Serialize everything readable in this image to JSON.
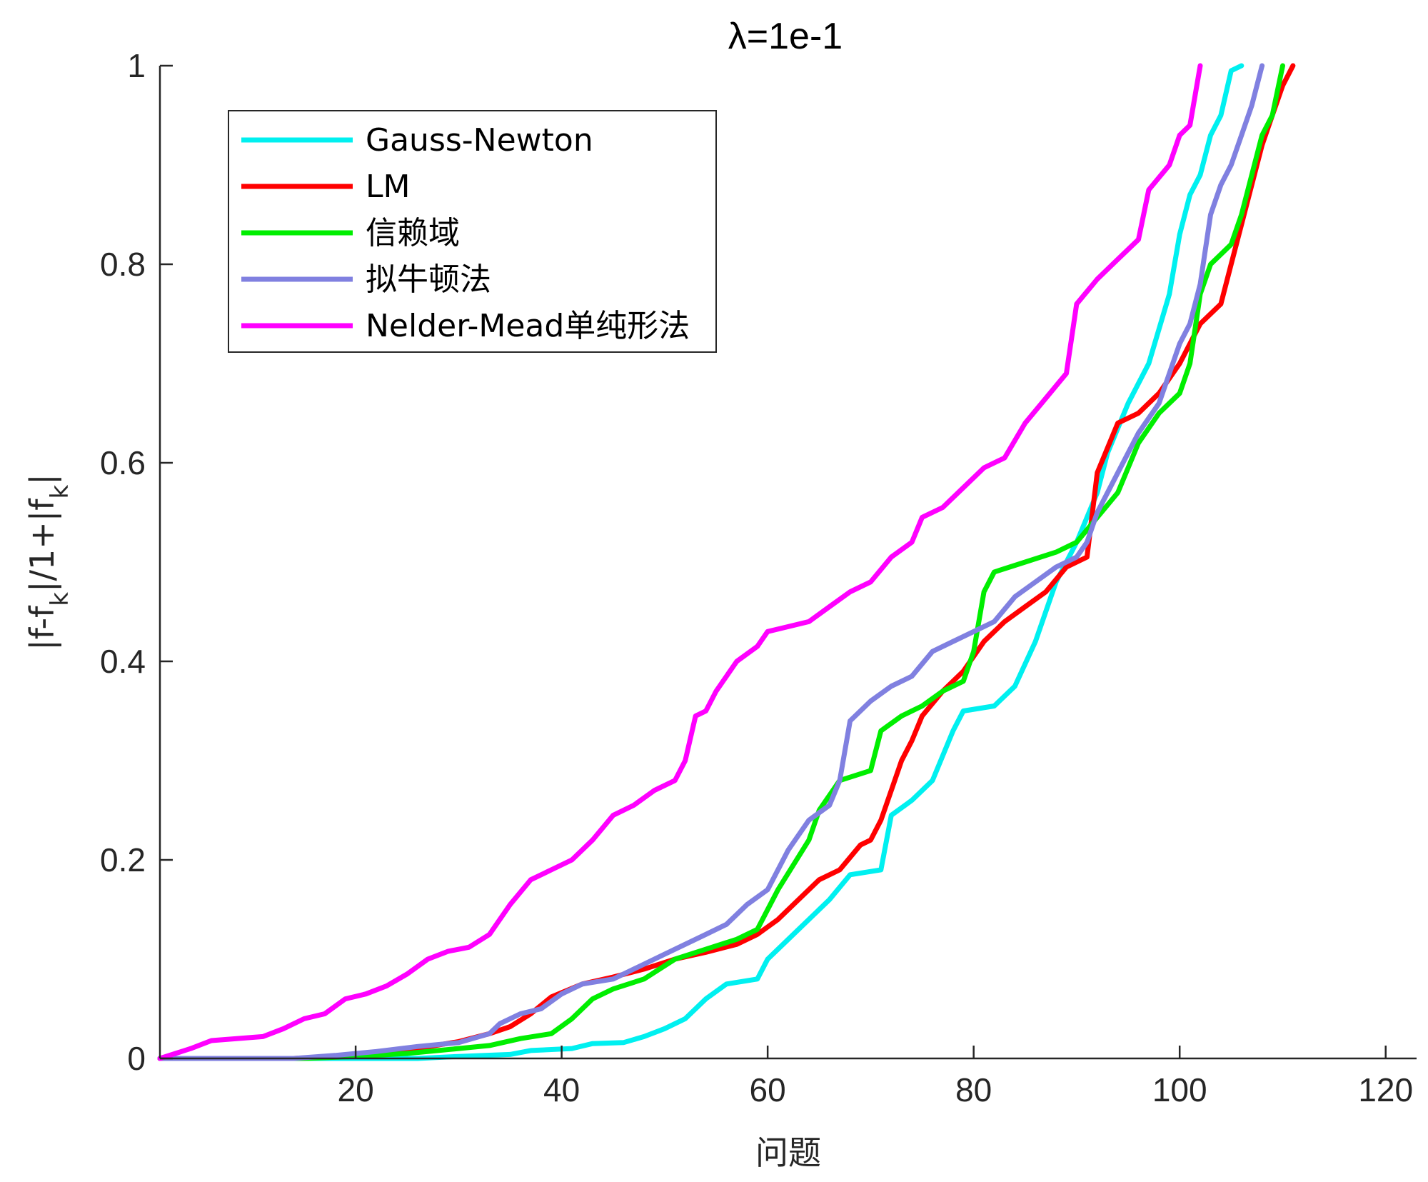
{
  "chart_data": {
    "type": "line",
    "title": "λ=1e-1",
    "xlabel": "问题",
    "ylabel": "|f-f_k|/1+|f_k|",
    "xlim": [
      1,
      123
    ],
    "ylim": [
      0,
      1
    ],
    "xticks": [
      20,
      40,
      60,
      80,
      100,
      120
    ],
    "yticks": [
      0,
      0.2,
      0.4,
      0.6,
      0.8,
      1
    ],
    "xtick_labels": [
      "20",
      "40",
      "60",
      "80",
      "100",
      "120"
    ],
    "ytick_labels": [
      "0",
      "0.2",
      "0.4",
      "0.6",
      "0.8",
      "1"
    ],
    "grid": false,
    "legend_position": "top-left",
    "series": [
      {
        "name": "Gauss-Newton",
        "color": "#00f0f0",
        "points": [
          [
            1,
            0
          ],
          [
            26,
            0
          ],
          [
            30,
            0.002
          ],
          [
            35,
            0.004
          ],
          [
            37,
            0.008
          ],
          [
            41,
            0.01
          ],
          [
            43,
            0.015
          ],
          [
            46,
            0.016
          ],
          [
            48,
            0.022
          ],
          [
            50,
            0.03
          ],
          [
            52,
            0.04
          ],
          [
            54,
            0.06
          ],
          [
            56,
            0.075
          ],
          [
            59,
            0.08
          ],
          [
            60,
            0.1
          ],
          [
            62,
            0.12
          ],
          [
            64,
            0.14
          ],
          [
            66,
            0.16
          ],
          [
            68,
            0.185
          ],
          [
            71,
            0.19
          ],
          [
            72,
            0.245
          ],
          [
            74,
            0.26
          ],
          [
            76,
            0.28
          ],
          [
            78,
            0.33
          ],
          [
            79,
            0.35
          ],
          [
            82,
            0.355
          ],
          [
            84,
            0.375
          ],
          [
            86,
            0.42
          ],
          [
            88,
            0.48
          ],
          [
            90,
            0.52
          ],
          [
            92,
            0.57
          ],
          [
            93,
            0.61
          ],
          [
            95,
            0.66
          ],
          [
            97,
            0.7
          ],
          [
            99,
            0.77
          ],
          [
            100,
            0.83
          ],
          [
            101,
            0.87
          ],
          [
            102,
            0.89
          ],
          [
            103,
            0.93
          ],
          [
            104,
            0.95
          ],
          [
            105,
            0.995
          ],
          [
            106,
            1.0
          ]
        ]
      },
      {
        "name": "LM",
        "color": "#ff0000",
        "points": [
          [
            1,
            0
          ],
          [
            14,
            0
          ],
          [
            18,
            0.002
          ],
          [
            22,
            0.005
          ],
          [
            26,
            0.01
          ],
          [
            30,
            0.017
          ],
          [
            33,
            0.025
          ],
          [
            35,
            0.032
          ],
          [
            37,
            0.045
          ],
          [
            39,
            0.062
          ],
          [
            42,
            0.075
          ],
          [
            45,
            0.082
          ],
          [
            48,
            0.09
          ],
          [
            51,
            0.1
          ],
          [
            54,
            0.107
          ],
          [
            57,
            0.115
          ],
          [
            59,
            0.125
          ],
          [
            61,
            0.14
          ],
          [
            63,
            0.16
          ],
          [
            65,
            0.18
          ],
          [
            67,
            0.19
          ],
          [
            69,
            0.215
          ],
          [
            70,
            0.22
          ],
          [
            71,
            0.24
          ],
          [
            72,
            0.27
          ],
          [
            73,
            0.3
          ],
          [
            74,
            0.32
          ],
          [
            75,
            0.345
          ],
          [
            77,
            0.37
          ],
          [
            79,
            0.39
          ],
          [
            81,
            0.42
          ],
          [
            83,
            0.44
          ],
          [
            85,
            0.455
          ],
          [
            87,
            0.47
          ],
          [
            89,
            0.495
          ],
          [
            91,
            0.505
          ],
          [
            92,
            0.59
          ],
          [
            94,
            0.64
          ],
          [
            96,
            0.65
          ],
          [
            98,
            0.67
          ],
          [
            100,
            0.7
          ],
          [
            102,
            0.74
          ],
          [
            104,
            0.76
          ],
          [
            105,
            0.8
          ],
          [
            106,
            0.84
          ],
          [
            107,
            0.88
          ],
          [
            108,
            0.92
          ],
          [
            109,
            0.95
          ],
          [
            110,
            0.98
          ],
          [
            111,
            1.0
          ]
        ]
      },
      {
        "name": "信赖域",
        "color": "#00ee00",
        "points": [
          [
            1,
            0
          ],
          [
            15,
            0
          ],
          [
            20,
            0.002
          ],
          [
            25,
            0.005
          ],
          [
            30,
            0.01
          ],
          [
            33,
            0.013
          ],
          [
            36,
            0.02
          ],
          [
            39,
            0.025
          ],
          [
            41,
            0.04
          ],
          [
            43,
            0.06
          ],
          [
            45,
            0.07
          ],
          [
            48,
            0.08
          ],
          [
            51,
            0.1
          ],
          [
            54,
            0.11
          ],
          [
            57,
            0.12
          ],
          [
            59,
            0.13
          ],
          [
            61,
            0.17
          ],
          [
            64,
            0.22
          ],
          [
            65,
            0.25
          ],
          [
            67,
            0.28
          ],
          [
            70,
            0.29
          ],
          [
            71,
            0.33
          ],
          [
            73,
            0.345
          ],
          [
            75,
            0.355
          ],
          [
            77,
            0.37
          ],
          [
            79,
            0.38
          ],
          [
            80,
            0.41
          ],
          [
            81,
            0.47
          ],
          [
            82,
            0.49
          ],
          [
            85,
            0.5
          ],
          [
            88,
            0.51
          ],
          [
            90,
            0.52
          ],
          [
            92,
            0.545
          ],
          [
            94,
            0.57
          ],
          [
            96,
            0.62
          ],
          [
            98,
            0.65
          ],
          [
            100,
            0.67
          ],
          [
            101,
            0.7
          ],
          [
            102,
            0.77
          ],
          [
            103,
            0.8
          ],
          [
            104,
            0.81
          ],
          [
            105,
            0.82
          ],
          [
            106,
            0.85
          ],
          [
            108,
            0.93
          ],
          [
            109,
            0.95
          ],
          [
            110,
            1.0
          ]
        ]
      },
      {
        "name": "拟牛顿法",
        "color": "#8080e0",
        "points": [
          [
            1,
            0
          ],
          [
            14,
            0
          ],
          [
            18,
            0.003
          ],
          [
            22,
            0.007
          ],
          [
            26,
            0.012
          ],
          [
            30,
            0.016
          ],
          [
            33,
            0.025
          ],
          [
            34,
            0.035
          ],
          [
            36,
            0.045
          ],
          [
            38,
            0.05
          ],
          [
            40,
            0.065
          ],
          [
            42,
            0.075
          ],
          [
            45,
            0.08
          ],
          [
            48,
            0.095
          ],
          [
            50,
            0.105
          ],
          [
            52,
            0.115
          ],
          [
            54,
            0.125
          ],
          [
            56,
            0.135
          ],
          [
            58,
            0.155
          ],
          [
            60,
            0.17
          ],
          [
            62,
            0.21
          ],
          [
            64,
            0.24
          ],
          [
            66,
            0.255
          ],
          [
            67,
            0.28
          ],
          [
            68,
            0.34
          ],
          [
            70,
            0.36
          ],
          [
            72,
            0.375
          ],
          [
            74,
            0.385
          ],
          [
            76,
            0.41
          ],
          [
            78,
            0.42
          ],
          [
            80,
            0.43
          ],
          [
            82,
            0.44
          ],
          [
            84,
            0.465
          ],
          [
            86,
            0.48
          ],
          [
            88,
            0.495
          ],
          [
            90,
            0.505
          ],
          [
            91,
            0.52
          ],
          [
            92,
            0.55
          ],
          [
            94,
            0.59
          ],
          [
            96,
            0.63
          ],
          [
            98,
            0.66
          ],
          [
            100,
            0.72
          ],
          [
            101,
            0.74
          ],
          [
            102,
            0.78
          ],
          [
            103,
            0.85
          ],
          [
            104,
            0.88
          ],
          [
            105,
            0.9
          ],
          [
            106,
            0.93
          ],
          [
            107,
            0.96
          ],
          [
            108,
            1.0
          ]
        ]
      },
      {
        "name": "Nelder-Mead单纯形法",
        "color": "#ff00ff",
        "points": [
          [
            1,
            0
          ],
          [
            4,
            0.01
          ],
          [
            6,
            0.018
          ],
          [
            11,
            0.022
          ],
          [
            13,
            0.03
          ],
          [
            15,
            0.04
          ],
          [
            17,
            0.045
          ],
          [
            19,
            0.06
          ],
          [
            21,
            0.065
          ],
          [
            23,
            0.073
          ],
          [
            25,
            0.085
          ],
          [
            27,
            0.1
          ],
          [
            29,
            0.108
          ],
          [
            31,
            0.112
          ],
          [
            33,
            0.125
          ],
          [
            35,
            0.155
          ],
          [
            37,
            0.18
          ],
          [
            39,
            0.19
          ],
          [
            41,
            0.2
          ],
          [
            43,
            0.22
          ],
          [
            45,
            0.245
          ],
          [
            47,
            0.255
          ],
          [
            49,
            0.27
          ],
          [
            51,
            0.28
          ],
          [
            52,
            0.3
          ],
          [
            53,
            0.345
          ],
          [
            54,
            0.35
          ],
          [
            55,
            0.37
          ],
          [
            57,
            0.4
          ],
          [
            59,
            0.415
          ],
          [
            60,
            0.43
          ],
          [
            62,
            0.435
          ],
          [
            64,
            0.44
          ],
          [
            66,
            0.455
          ],
          [
            68,
            0.47
          ],
          [
            70,
            0.48
          ],
          [
            72,
            0.505
          ],
          [
            74,
            0.52
          ],
          [
            75,
            0.545
          ],
          [
            77,
            0.555
          ],
          [
            79,
            0.575
          ],
          [
            81,
            0.595
          ],
          [
            83,
            0.605
          ],
          [
            85,
            0.64
          ],
          [
            87,
            0.665
          ],
          [
            89,
            0.69
          ],
          [
            90,
            0.76
          ],
          [
            92,
            0.785
          ],
          [
            94,
            0.805
          ],
          [
            96,
            0.825
          ],
          [
            97,
            0.875
          ],
          [
            99,
            0.9
          ],
          [
            100,
            0.93
          ],
          [
            101,
            0.94
          ],
          [
            102,
            1.0
          ]
        ]
      }
    ]
  }
}
